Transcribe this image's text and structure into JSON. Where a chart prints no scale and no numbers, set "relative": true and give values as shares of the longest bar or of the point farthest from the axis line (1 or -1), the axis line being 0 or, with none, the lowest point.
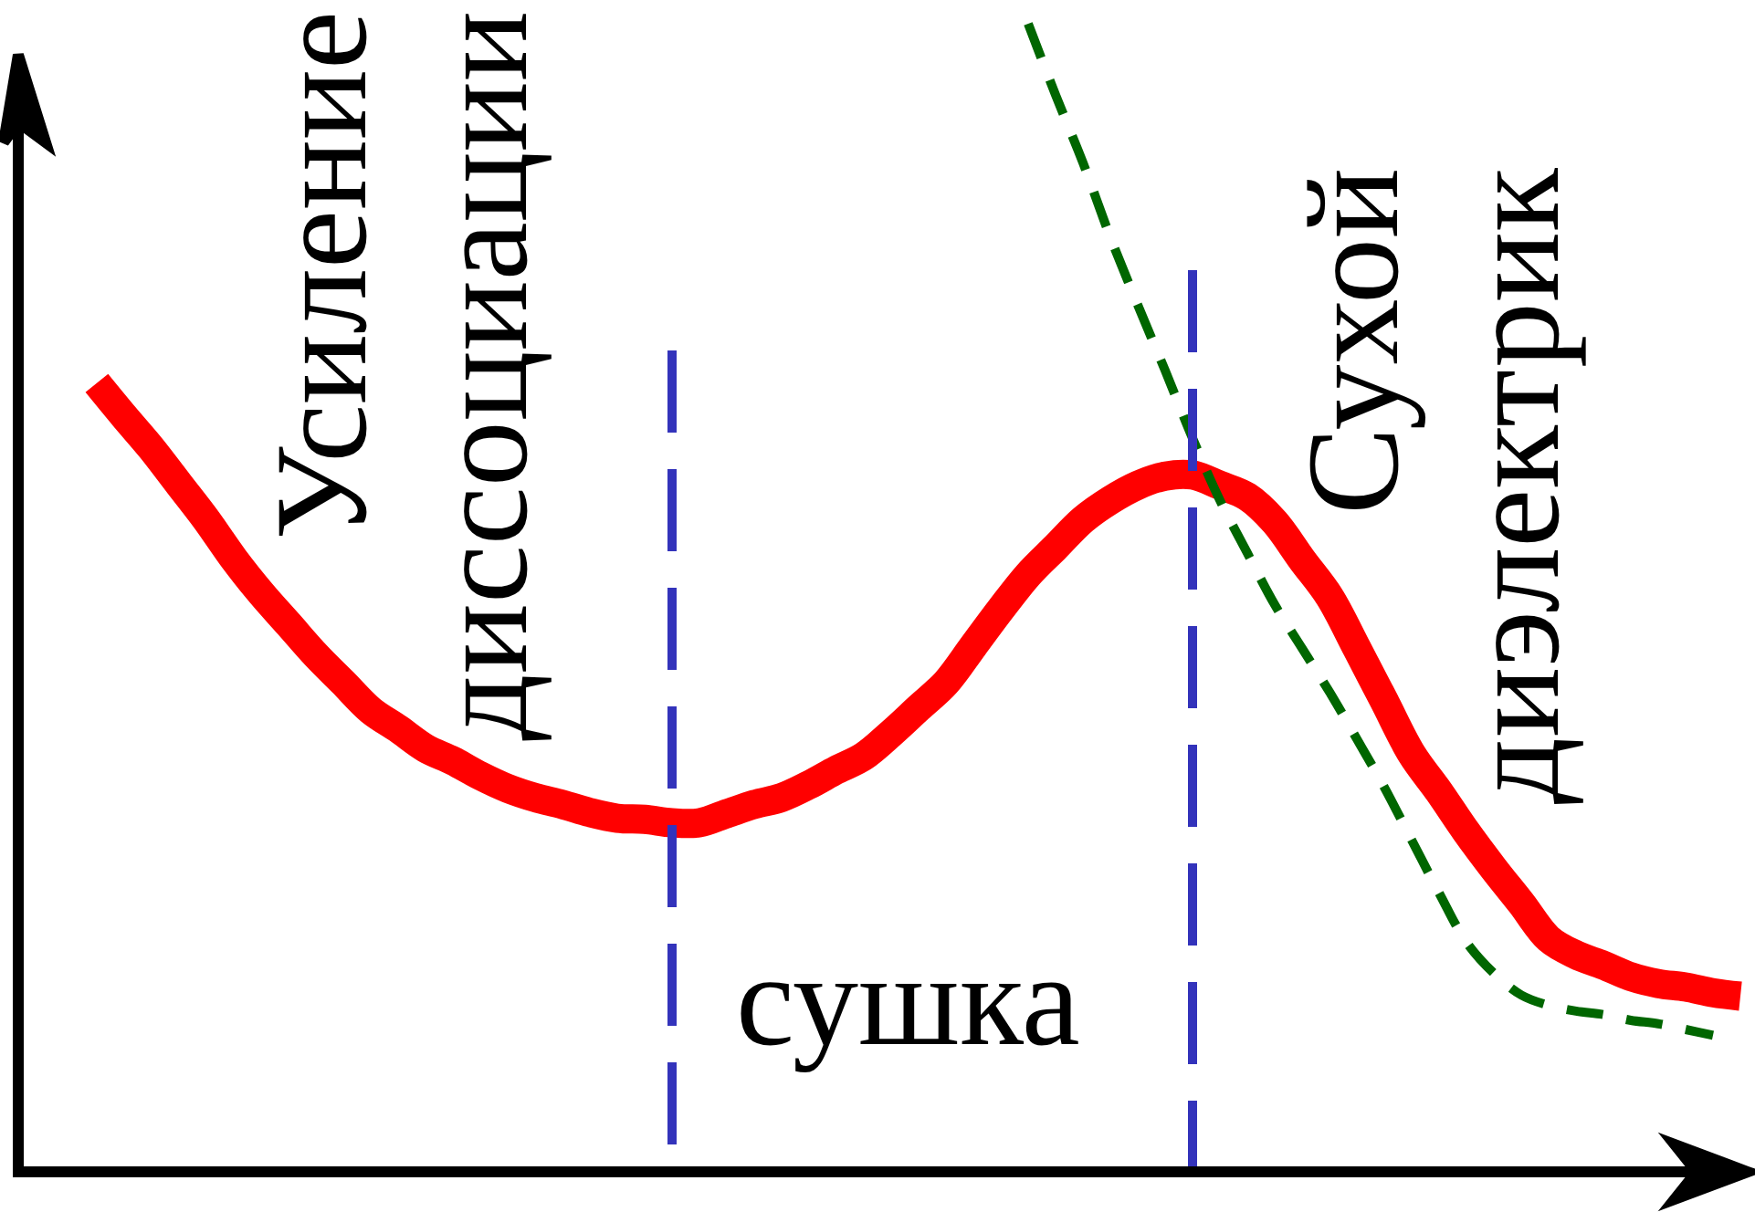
{
  "chart_data": {
    "type": "line",
    "relative": true,
    "categories": [
      null,
      null,
      null,
      null,
      null,
      null,
      null,
      null,
      null,
      null,
      null,
      null,
      null,
      null,
      null,
      null,
      null,
      null,
      null,
      null,
      null,
      null,
      null,
      null,
      null,
      null,
      null,
      null,
      null,
      null,
      null,
      null,
      null,
      null,
      null,
      null,
      null,
      null,
      null,
      null,
      null,
      null,
      null,
      null,
      null,
      null,
      null,
      null,
      null,
      null,
      null,
      null,
      null,
      null,
      null,
      null,
      null,
      null,
      null,
      null,
      null
    ],
    "series": [
      {
        "color": "#ff0000",
        "values": [
          0.687,
          0.658,
          0.63,
          0.599,
          0.568,
          0.534,
          0.504,
          0.477,
          0.45,
          0.426,
          0.402,
          0.386,
          0.369,
          0.358,
          0.345,
          0.334,
          0.326,
          0.32,
          0.313,
          0.308,
          0.307,
          0.304,
          0.304,
          0.312,
          0.32,
          0.326,
          0.337,
          0.35,
          0.362,
          0.382,
          0.404,
          0.426,
          0.458,
          0.49,
          0.52,
          0.544,
          0.568,
          0.585,
          0.598,
          0.606,
          0.607,
          0.598,
          0.588,
          0.566,
          0.533,
          0.501,
          0.456,
          0.41,
          0.364,
          0.331,
          0.296,
          0.264,
          0.234,
          0.203,
          0.189,
          0.18,
          0.17,
          0.164,
          0.161,
          0.156,
          0.153
        ]
      },
      {
        "color": "#006600",
        "line_style": "dashed",
        "values": [
          null,
          null,
          null,
          null,
          null,
          null,
          null,
          null,
          null,
          null,
          null,
          null,
          null,
          null,
          null,
          null,
          null,
          null,
          null,
          null,
          null,
          null,
          null,
          null,
          null,
          null,
          null,
          null,
          null,
          null,
          null,
          null,
          null,
          null,
          1,
          0.938,
          0.879,
          0.814,
          0.755,
          0.698,
          0.639,
          0.585,
          0.539,
          0.494,
          0.456,
          0.418,
          0.377,
          0.335,
          0.289,
          0.243,
          0.2,
          0.173,
          0.154,
          0.145,
          0.14,
          0.137,
          0.132,
          0.129,
          0.124,
          0.119,
          null
        ]
      }
    ],
    "annotations": [
      "Усиление диссоциации",
      "сушка",
      "Сухой диэлектрик"
    ]
  }
}
